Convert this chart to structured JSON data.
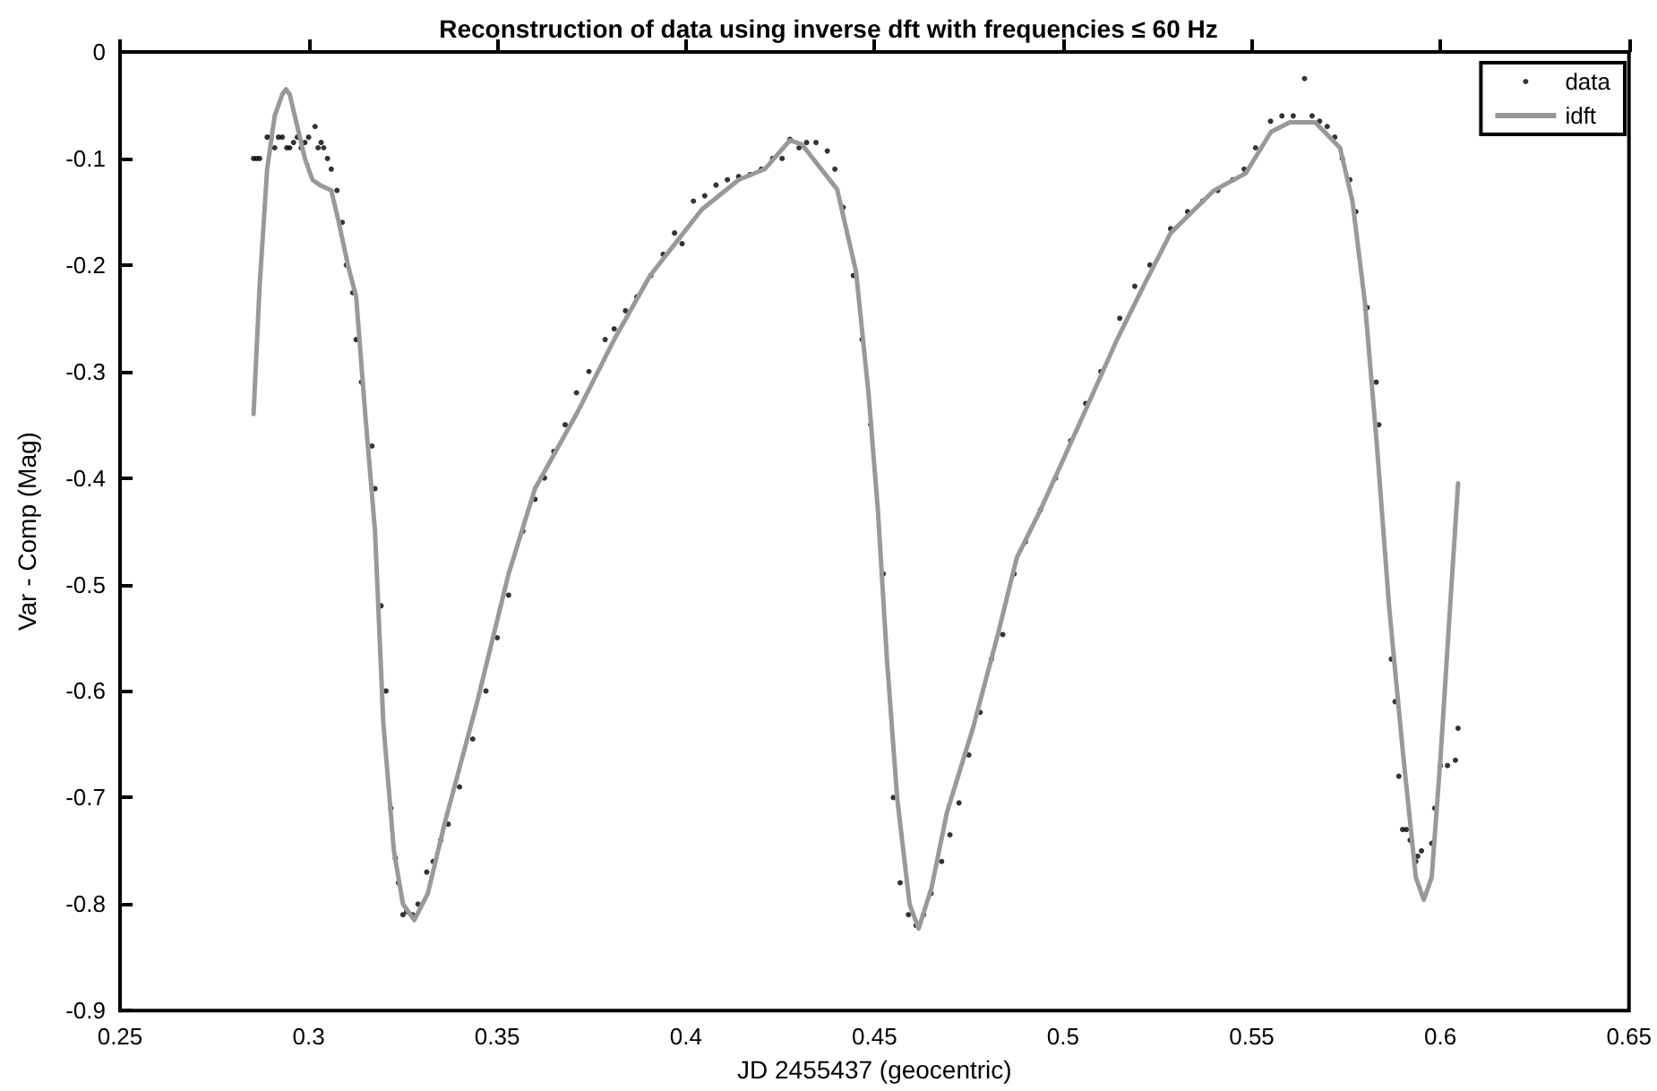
{
  "chart_data": {
    "type": "scatter",
    "title": "Reconstruction of data using inverse dft with frequencies ≤ 60 Hz",
    "xlabel": "JD 2455437 (geocentric)",
    "ylabel": "Var - Comp (Mag)",
    "xlim": [
      0.25,
      0.65
    ],
    "xticks": [
      0.25,
      0.3,
      0.35,
      0.4,
      0.45,
      0.5,
      0.55,
      0.6,
      0.65
    ],
    "ylim": [
      -0.9,
      0
    ],
    "yticks": [
      -0.9,
      -0.8,
      -0.7,
      -0.6,
      -0.5,
      -0.4,
      -0.3,
      -0.2,
      -0.1,
      0
    ],
    "grid": false,
    "legend": "top right",
    "series": [
      {
        "name": "data",
        "color": "#000000",
        "x": [
          0.2854,
          0.2862,
          0.287,
          0.289,
          0.29,
          0.291,
          0.292,
          0.293,
          0.2942,
          0.295,
          0.296,
          0.297,
          0.298,
          0.299,
          0.3,
          0.3017,
          0.3025,
          0.3033,
          0.304,
          0.305,
          0.306,
          0.3075,
          0.3089,
          0.31,
          0.3117,
          0.3126,
          0.314,
          0.3168,
          0.3176,
          0.3192,
          0.3205,
          0.3218,
          0.323,
          0.3238,
          0.325,
          0.326,
          0.3275,
          0.329,
          0.3313,
          0.333,
          0.335,
          0.337,
          0.34,
          0.3435,
          0.347,
          0.35,
          0.353,
          0.3568,
          0.36,
          0.3625,
          0.365,
          0.368,
          0.371,
          0.3743,
          0.3786,
          0.381,
          0.384,
          0.387,
          0.3907,
          0.394,
          0.397,
          0.399,
          0.402,
          0.405,
          0.408,
          0.411,
          0.414,
          0.417,
          0.42,
          0.423,
          0.4255,
          0.4276,
          0.43,
          0.432,
          0.4345,
          0.4375,
          0.4395,
          0.4417,
          0.4444,
          0.4467,
          0.449,
          0.4523,
          0.455,
          0.4568,
          0.459,
          0.461,
          0.463,
          0.465,
          0.4678,
          0.47,
          0.4724,
          0.475,
          0.478,
          0.481,
          0.484,
          0.487,
          0.49,
          0.494,
          0.498,
          0.502,
          0.506,
          0.51,
          0.515,
          0.519,
          0.523,
          0.5285,
          0.533,
          0.537,
          0.541,
          0.545,
          0.548,
          0.551,
          0.555,
          0.558,
          0.561,
          0.564,
          0.566,
          0.568,
          0.57,
          0.572,
          0.574,
          0.576,
          0.5776,
          0.5806,
          0.583,
          0.5837,
          0.587,
          0.588,
          0.589,
          0.59,
          0.591,
          0.592,
          0.5935,
          0.594,
          0.595,
          0.5977,
          0.5985,
          0.6,
          0.6019,
          0.604,
          0.6047
        ],
        "values": [
          -0.1,
          -0.1,
          -0.1,
          -0.08,
          -0.08,
          -0.09,
          -0.08,
          -0.08,
          -0.09,
          -0.09,
          -0.085,
          -0.08,
          -0.09,
          -0.085,
          -0.08,
          -0.07,
          -0.09,
          -0.085,
          -0.09,
          -0.1,
          -0.11,
          -0.13,
          -0.16,
          -0.2,
          -0.226,
          -0.27,
          -0.31,
          -0.37,
          -0.41,
          -0.52,
          -0.6,
          -0.71,
          -0.757,
          -0.78,
          -0.81,
          -0.807,
          -0.81,
          -0.8,
          -0.77,
          -0.76,
          -0.74,
          -0.725,
          -0.69,
          -0.645,
          -0.6,
          -0.55,
          -0.51,
          -0.45,
          -0.42,
          -0.4,
          -0.375,
          -0.35,
          -0.32,
          -0.3,
          -0.27,
          -0.26,
          -0.243,
          -0.23,
          -0.21,
          -0.19,
          -0.17,
          -0.18,
          -0.14,
          -0.135,
          -0.125,
          -0.12,
          -0.117,
          -0.115,
          -0.11,
          -0.1,
          -0.1,
          -0.082,
          -0.09,
          -0.085,
          -0.085,
          -0.093,
          -0.11,
          -0.146,
          -0.21,
          -0.27,
          -0.35,
          -0.49,
          -0.7,
          -0.78,
          -0.81,
          -0.82,
          -0.81,
          -0.79,
          -0.76,
          -0.735,
          -0.705,
          -0.66,
          -0.62,
          -0.57,
          -0.547,
          -0.49,
          -0.46,
          -0.43,
          -0.4,
          -0.365,
          -0.33,
          -0.3,
          -0.25,
          -0.22,
          -0.2,
          -0.166,
          -0.15,
          -0.14,
          -0.13,
          -0.12,
          -0.11,
          -0.09,
          -0.065,
          -0.06,
          -0.06,
          -0.025,
          -0.06,
          -0.065,
          -0.07,
          -0.08,
          -0.1,
          -0.12,
          -0.15,
          -0.24,
          -0.31,
          -0.35,
          -0.57,
          -0.61,
          -0.68,
          -0.73,
          -0.73,
          -0.74,
          -0.76,
          -0.755,
          -0.75,
          -0.743,
          -0.71,
          -0.67,
          -0.67,
          -0.665,
          -0.635
        ]
      },
      {
        "name": "idft",
        "type": "line",
        "color": "#999999",
        "x": [
          0.2854,
          0.287,
          0.289,
          0.291,
          0.293,
          0.294,
          0.295,
          0.297,
          0.299,
          0.301,
          0.303,
          0.306,
          0.308,
          0.3104,
          0.3126,
          0.315,
          0.3176,
          0.3198,
          0.3226,
          0.325,
          0.328,
          0.3316,
          0.336,
          0.3447,
          0.353,
          0.36,
          0.371,
          0.381,
          0.3905,
          0.4042,
          0.414,
          0.4209,
          0.4276,
          0.4308,
          0.4401,
          0.4451,
          0.4484,
          0.4509,
          0.4533,
          0.456,
          0.4593,
          0.4617,
          0.4651,
          0.4692,
          0.476,
          0.4827,
          0.4877,
          0.494,
          0.5042,
          0.5143,
          0.5213,
          0.5285,
          0.54,
          0.5484,
          0.5551,
          0.5601,
          0.5668,
          0.5734,
          0.5767,
          0.58,
          0.5832,
          0.5864,
          0.59,
          0.5935,
          0.5956,
          0.5977,
          0.6,
          0.6026,
          0.6047
        ],
        "values": [
          -0.34,
          -0.22,
          -0.11,
          -0.06,
          -0.04,
          -0.035,
          -0.04,
          -0.07,
          -0.1,
          -0.12,
          -0.125,
          -0.13,
          -0.16,
          -0.2,
          -0.23,
          -0.34,
          -0.45,
          -0.63,
          -0.75,
          -0.8,
          -0.815,
          -0.79,
          -0.725,
          -0.61,
          -0.49,
          -0.41,
          -0.34,
          -0.27,
          -0.21,
          -0.148,
          -0.12,
          -0.11,
          -0.083,
          -0.087,
          -0.129,
          -0.206,
          -0.32,
          -0.43,
          -0.57,
          -0.7,
          -0.8,
          -0.823,
          -0.785,
          -0.714,
          -0.636,
          -0.547,
          -0.475,
          -0.43,
          -0.35,
          -0.27,
          -0.22,
          -0.17,
          -0.13,
          -0.114,
          -0.075,
          -0.066,
          -0.066,
          -0.09,
          -0.14,
          -0.235,
          -0.37,
          -0.52,
          -0.655,
          -0.775,
          -0.796,
          -0.775,
          -0.665,
          -0.52,
          -0.405
        ]
      }
    ]
  }
}
